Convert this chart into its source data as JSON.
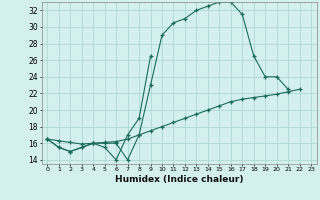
{
  "title": "",
  "xlabel": "Humidex (Indice chaleur)",
  "bg_color": "#d4f0ee",
  "grid_color": "#b0d8d4",
  "line_color": "#1a6b5a",
  "xlim_min": -0.5,
  "xlim_max": 23.5,
  "ylim_min": 13.5,
  "ylim_max": 33.0,
  "xticks": [
    0,
    1,
    2,
    3,
    4,
    5,
    6,
    7,
    8,
    9,
    10,
    11,
    12,
    13,
    14,
    15,
    16,
    17,
    18,
    19,
    20,
    21,
    22,
    23
  ],
  "yticks": [
    14,
    16,
    18,
    20,
    22,
    24,
    26,
    28,
    30,
    32
  ],
  "s1_x": [
    0,
    1,
    2,
    3,
    4,
    5,
    6,
    7,
    8,
    9,
    10,
    11,
    12,
    13,
    14,
    15,
    16,
    17,
    18,
    19,
    20,
    21
  ],
  "s1_y": [
    16.5,
    15.5,
    15.0,
    15.5,
    16.0,
    16.0,
    16.0,
    14.0,
    17.0,
    23.0,
    29.0,
    30.5,
    31.0,
    32.0,
    32.5,
    33.0,
    33.0,
    31.5,
    26.5,
    24.0,
    24.0,
    22.5
  ],
  "s2_x": [
    0,
    1,
    2,
    3,
    4,
    5,
    6,
    7,
    8,
    9
  ],
  "s2_y": [
    16.5,
    15.5,
    15.0,
    15.5,
    16.0,
    15.5,
    14.0,
    17.0,
    19.0,
    26.5
  ],
  "s3_x": [
    0,
    1,
    2,
    3,
    4,
    5,
    6,
    7,
    8,
    9,
    10,
    11,
    12,
    13,
    14,
    15,
    16,
    17,
    18,
    19,
    20,
    21,
    22
  ],
  "s3_y": [
    16.5,
    16.3,
    16.1,
    15.9,
    16.0,
    16.1,
    16.2,
    16.5,
    17.0,
    17.5,
    18.0,
    18.5,
    19.0,
    19.5,
    20.0,
    20.5,
    21.0,
    21.3,
    21.5,
    21.7,
    21.9,
    22.2,
    22.5
  ]
}
